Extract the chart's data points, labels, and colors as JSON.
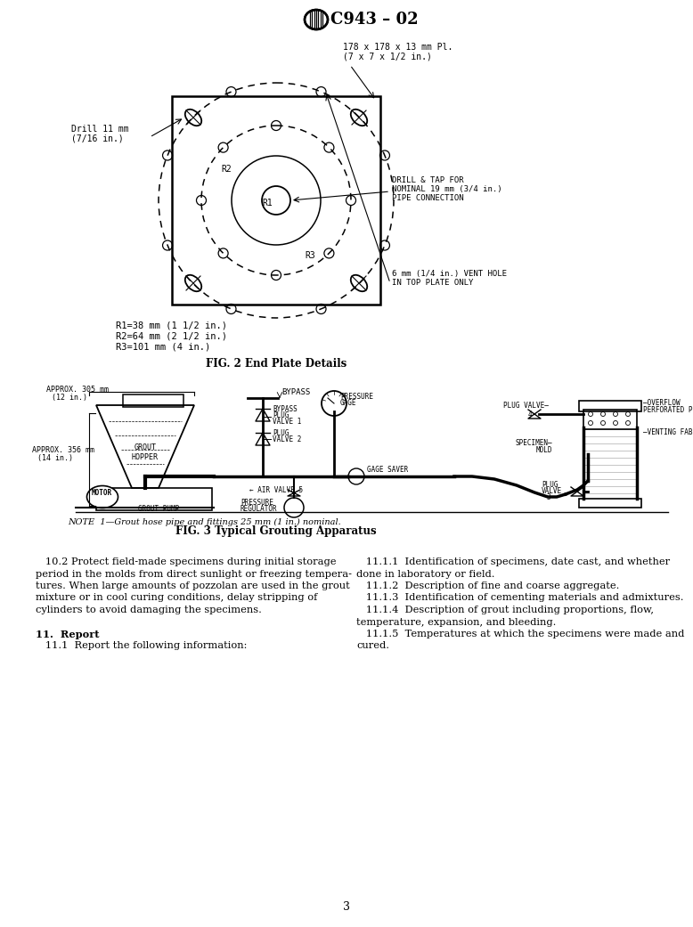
{
  "bg_color": "#ffffff",
  "page_number": "3",
  "header_title": "C943 – 02",
  "plate_size_line1": "178 x 178 x 13 mm Pl.",
  "plate_size_line2": "(7 x 7 x 1/2 in.)",
  "fig2_caption": "FIG. 2 End Plate Details",
  "fig3_caption": "FIG. 3 Typical Grouting Apparatus",
  "note_fig3": "NOTE  1—Grout hose pipe and fittings 25 mm (1 in.) nominal.",
  "r_labels_line1": "R1=38 mm (1 1/2 in.)",
  "r_labels_line2": "R2=64 mm (2 1/2 in.)",
  "r_labels_line3": "R3=101 mm (4 in.)",
  "drill_label_line1": "Drill 11 mm",
  "drill_label_line2": "(7/16 in.)",
  "drill_tap_line1": "DRILL & TAP FOR",
  "drill_tap_line2": "NOMINAL 19 mm (3/4 in.)",
  "drill_tap_line3": "PIPE CONNECTION",
  "vent_line1": "6 mm (1/4 in.) VENT HOLE",
  "vent_line2": "IN TOP PLATE ONLY",
  "approx305": "APPROX. 305 mm",
  "approx305b": "(12 in.)",
  "approx356": "APPROX. 356 mm",
  "approx356b": "(14 in.)",
  "body_left_lines": [
    "   10.2 Protect field-made specimens during initial storage",
    "period in the molds from direct sunlight or freezing tempera-",
    "tures. When large amounts of pozzolan are used in the grout",
    "mixture or in cool curing conditions, delay stripping of",
    "cylinders to avoid damaging the specimens.",
    "",
    "11.  Report",
    "   11.1  Report the following information:"
  ],
  "body_right_lines": [
    "   11.1.1  Identification of specimens, date cast, and whether",
    "done in laboratory or field.",
    "   11.1.2  Description of fine and coarse aggregate.",
    "   11.1.3  Identification of cementing materials and admixtures.",
    "   11.1.4  Description of grout including proportions, flow,",
    "temperature, expansion, and bleeding.",
    "   11.1.5  Temperatures at which the specimens were made and",
    "cured."
  ]
}
